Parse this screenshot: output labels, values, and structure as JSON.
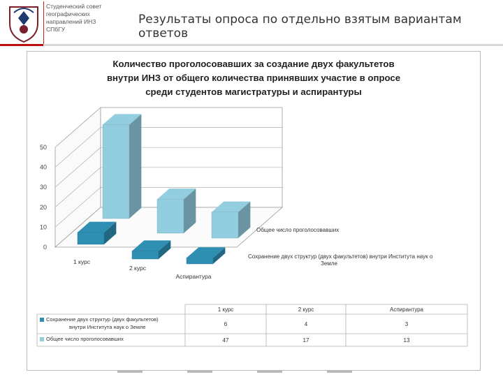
{
  "header": {
    "org_lines": [
      "Студенческий совет",
      "географических",
      "направлений ИНЗ",
      "СПбГУ"
    ],
    "slide_title": "Результаты опроса по отдельно взятым вариантам ответов"
  },
  "chart_data": {
    "type": "bar",
    "title_lines": [
      "Количество проголосовавших за создание двух факультетов",
      "внутри ИНЗ от общего количества принявших участие в опросе",
      "среди студентов магистратуры и аспирантуры"
    ],
    "categories": [
      "1 курс",
      "2 курс",
      "Аспирантура"
    ],
    "series": [
      {
        "name": "Сохранение двух структур (двух факультетов) внутри Института наук о Земле",
        "values": [
          6,
          4,
          3
        ],
        "color": "#2e8fb3"
      },
      {
        "name": "Общее число проголосовавших",
        "values": [
          47,
          17,
          13
        ],
        "color": "#93cde0"
      }
    ],
    "series_axis_labels": [
      "Общее число проголосовавших",
      "Сохранение двух структур (двух факультетов) внутри Института наук о",
      "Земле"
    ],
    "yticks": [
      0,
      10,
      20,
      30,
      40,
      50
    ],
    "ylim": [
      0,
      50
    ],
    "table": {
      "headers": [
        "1 курс",
        "2 курс",
        "Аспирантура"
      ],
      "rows": [
        {
          "label_lines": [
            "Сохранение двух структур (двух факультетов)",
            "внутри Института наук о Земле"
          ],
          "values": [
            "6",
            "4",
            "3"
          ],
          "color": "#2e8fb3"
        },
        {
          "label_lines": [
            "Общее число проголосовавших"
          ],
          "values": [
            "47",
            "17",
            "13"
          ],
          "color": "#93cde0"
        }
      ]
    }
  }
}
